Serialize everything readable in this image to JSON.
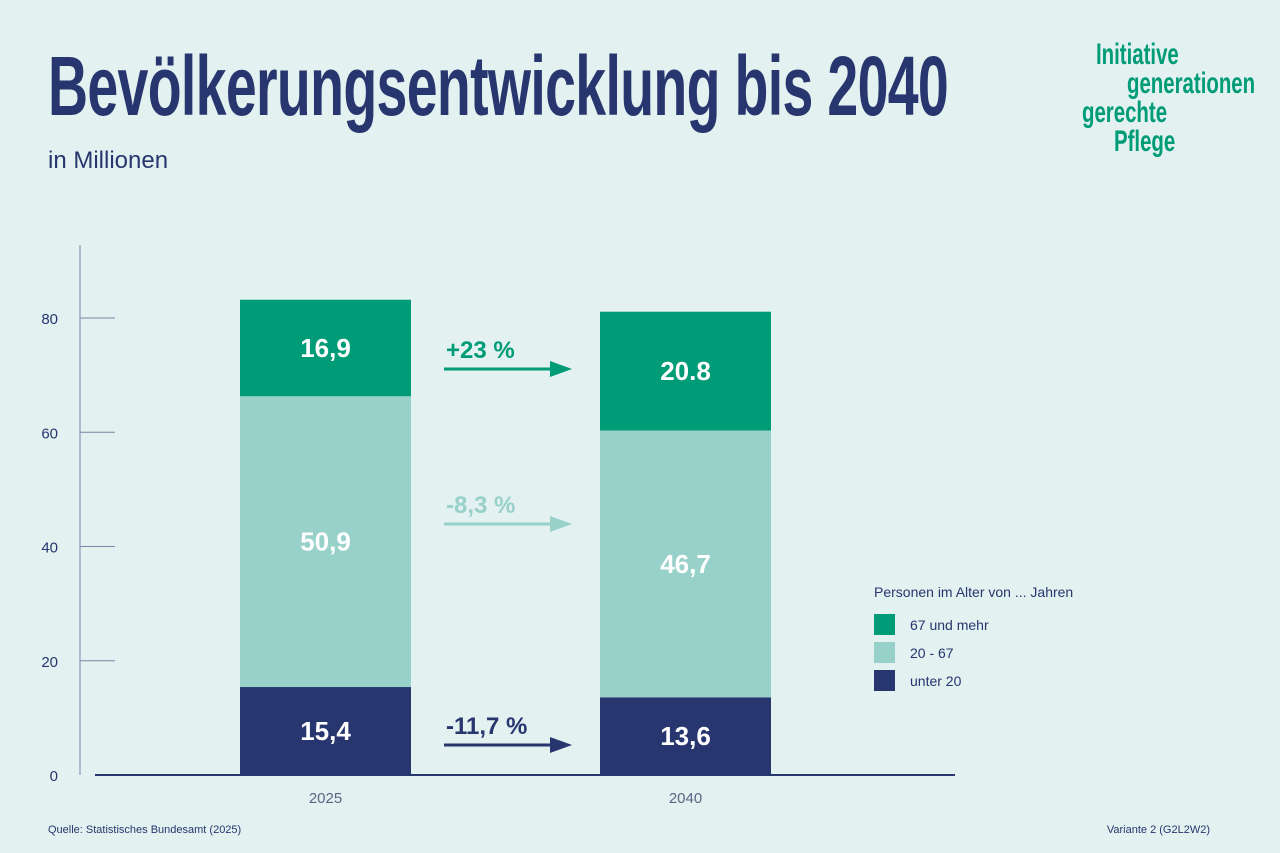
{
  "title": "Bevölkerungsentwicklung bis 2040",
  "subtitle": "in Millionen",
  "logo": [
    "Initiative",
    "generationen",
    "gerechte",
    "Pflege"
  ],
  "source": "Quelle: Statistisches Bundesamt (2025)",
  "variant": "Variante 2 (G2L2W2)",
  "colors": {
    "navy": "#27366e",
    "green": "#009b77",
    "light": "#97d1c9"
  },
  "chart_data": {
    "type": "bar",
    "stacked": true,
    "categories": [
      "2025",
      "2040"
    ],
    "series": [
      {
        "name": "unter 20",
        "values": [
          15.4,
          13.6
        ],
        "labels": [
          "15,4",
          "13,6"
        ],
        "color": "#27366e"
      },
      {
        "name": "20 - 67",
        "values": [
          50.9,
          46.7
        ],
        "labels": [
          "50,9",
          "46,7"
        ],
        "color": "#97d1c9"
      },
      {
        "name": "67 und mehr",
        "values": [
          16.9,
          20.8
        ],
        "labels": [
          "16,9",
          "20.8"
        ],
        "color": "#009b77"
      }
    ],
    "changes": [
      {
        "series": "67 und mehr",
        "label": "+23 %",
        "color": "#009b77"
      },
      {
        "series": "20 - 67",
        "label": "-8,3 %",
        "color": "#97d1c9"
      },
      {
        "series": "unter 20",
        "label": "-11,7 %",
        "color": "#27366e"
      }
    ],
    "yticks": [
      "0",
      "20",
      "40",
      "60",
      "80"
    ],
    "ylim": [
      0,
      92
    ],
    "legend_title": "Personen im Alter von ... Jahren",
    "legend_position": "right",
    "grid": false
  }
}
